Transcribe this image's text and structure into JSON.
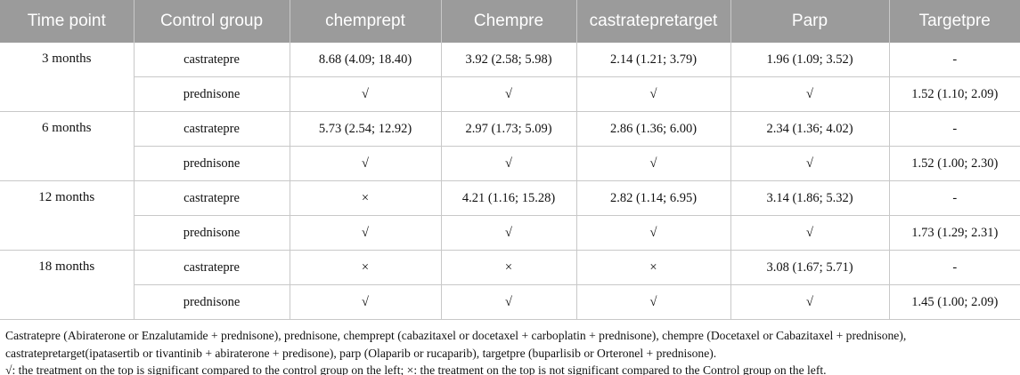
{
  "table": {
    "header": [
      "Time point",
      "Control group",
      "chemprept",
      "Chempre",
      "castratepretarget",
      "Parp",
      "Targetpre"
    ],
    "groups": [
      {
        "time": "3 months",
        "rows": [
          [
            "castratepre",
            "8.68 (4.09; 18.40)",
            "3.92 (2.58; 5.98)",
            "2.14 (1.21; 3.79)",
            "1.96 (1.09; 3.52)",
            "-"
          ],
          [
            "prednisone",
            "√",
            "√",
            "√",
            "√",
            "1.52 (1.10; 2.09)"
          ]
        ]
      },
      {
        "time": "6 months",
        "rows": [
          [
            "castratepre",
            "5.73 (2.54; 12.92)",
            "2.97 (1.73; 5.09)",
            "2.86 (1.36; 6.00)",
            "2.34 (1.36; 4.02)",
            "-"
          ],
          [
            "prednisone",
            "√",
            "√",
            "√",
            "√",
            "1.52 (1.00; 2.30)"
          ]
        ]
      },
      {
        "time": "12 months",
        "rows": [
          [
            "castratepre",
            "×",
            "4.21 (1.16; 15.28)",
            "2.82 (1.14; 6.95)",
            "3.14 (1.86; 5.32)",
            "-"
          ],
          [
            "prednisone",
            "√",
            "√",
            "√",
            "√",
            "1.73 (1.29; 2.31)"
          ]
        ]
      },
      {
        "time": "18 months",
        "rows": [
          [
            "castratepre",
            "×",
            "×",
            "×",
            "3.08 (1.67; 5.71)",
            "-"
          ],
          [
            "prednisone",
            "√",
            "√",
            "√",
            "√",
            "1.45 (1.00; 2.09)"
          ]
        ]
      }
    ]
  },
  "footnotes": [
    "Castratepre (Abiraterone or Enzalutamide + prednisone), prednisone, chemprept (cabazitaxel or docetaxel + carboplatin + prednisone), chempre (Docetaxel or Cabazitaxel + prednisone), castratepretarget(ipatasertib or tivantinib + abiraterone + predisone), parp (Olaparib or rucaparib), targetpre (buparlisib or Orteronel + prednisone).",
    "√: the treatment on the top is significant compared to the control group on the left; ×: the treatment on the top is not significant compared to the Control group on the left."
  ]
}
